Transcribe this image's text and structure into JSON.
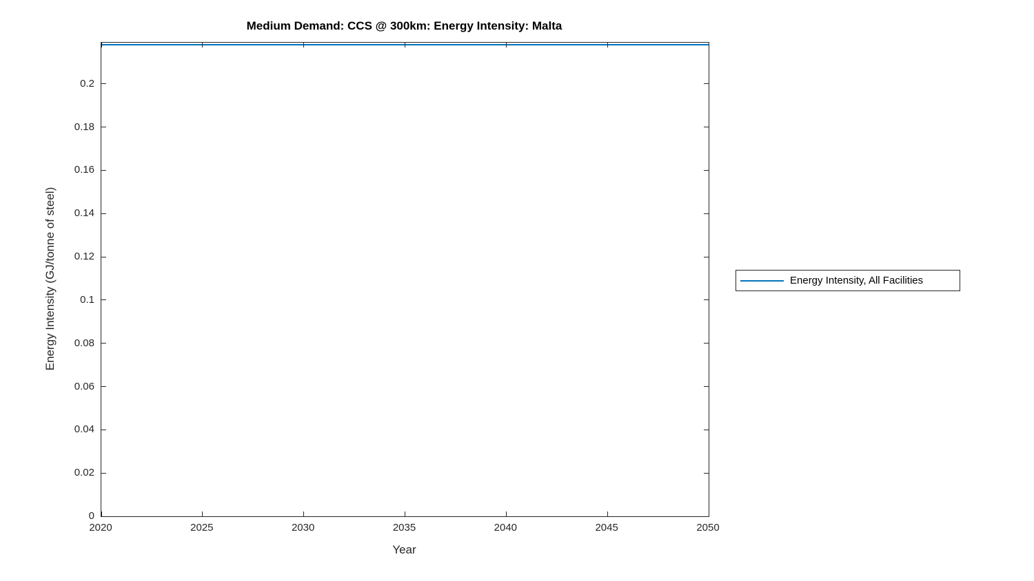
{
  "chart_data": {
    "type": "line",
    "title": "Medium Demand: CCS @ 300km: Energy Intensity: Malta",
    "xlabel": "Year",
    "ylabel": "Energy Intensity (GJ/tonne of steel)",
    "xlim": [
      2020,
      2050
    ],
    "ylim": [
      0,
      0.219
    ],
    "x_ticks": [
      2020,
      2025,
      2030,
      2035,
      2040,
      2045,
      2050
    ],
    "y_ticks": [
      0,
      0.02,
      0.04,
      0.06,
      0.08,
      0.1,
      0.12,
      0.14,
      0.16,
      0.18,
      0.2
    ],
    "grid": false,
    "box": true,
    "tick_direction": "in",
    "background_color": "#ffffff",
    "axis_color": "#262626",
    "legend": {
      "position": "outside-right",
      "entries": [
        {
          "label": "Energy Intensity, All Facilities",
          "color": "#0072BD"
        }
      ]
    },
    "series": [
      {
        "name": "Energy Intensity, All Facilities",
        "color": "#0072BD",
        "x": [
          2020,
          2025,
          2030,
          2035,
          2040,
          2045,
          2050
        ],
        "values": [
          0.218,
          0.218,
          0.218,
          0.218,
          0.218,
          0.218,
          0.218
        ]
      }
    ]
  }
}
